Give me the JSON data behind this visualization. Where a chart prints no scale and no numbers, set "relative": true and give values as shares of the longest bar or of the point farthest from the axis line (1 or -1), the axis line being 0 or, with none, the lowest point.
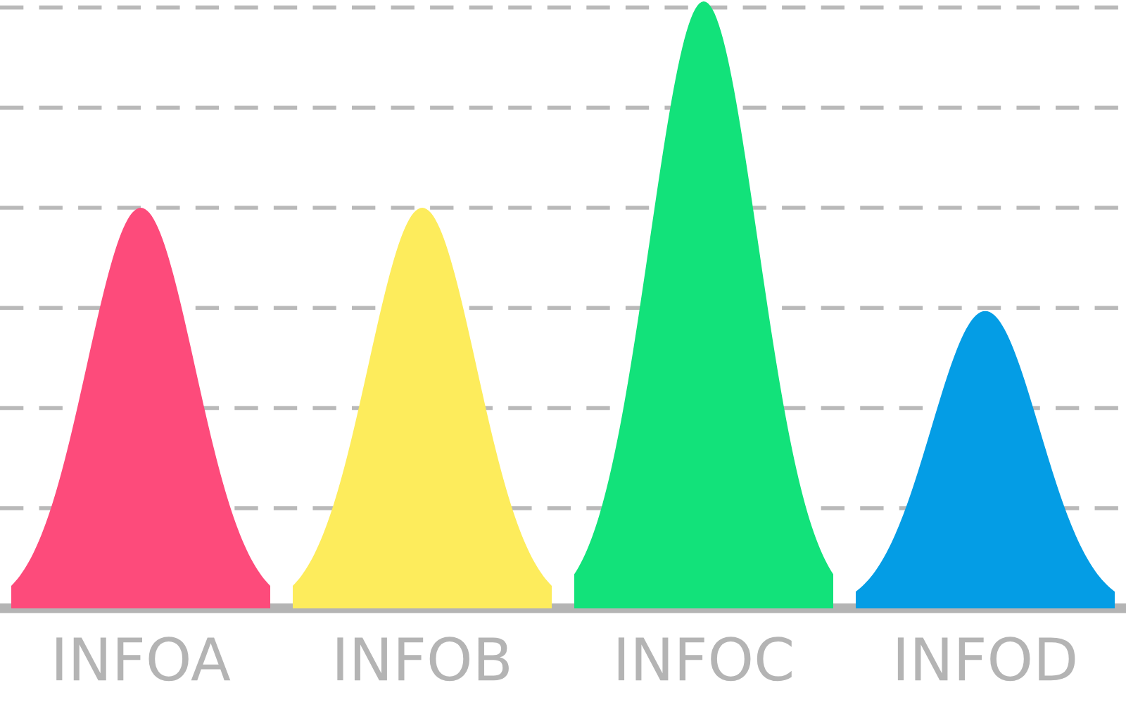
{
  "chart_data": {
    "type": "bar",
    "relative": true,
    "categories": [
      "INFOA",
      "INFOB",
      "INFOC",
      "INFOD"
    ],
    "values": [
      0.66,
      0.66,
      1.0,
      0.49
    ],
    "colors": [
      "#fd4b7b",
      "#fdec5c",
      "#12e27a",
      "#049de5"
    ],
    "grid": "y"
  }
}
